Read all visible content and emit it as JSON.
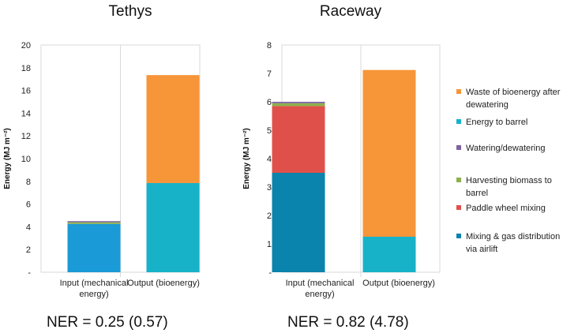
{
  "chart_data": [
    {
      "type": "bar",
      "stacked": true,
      "title": "Tethys",
      "ylabel": "Energy (MJ m⁻²)",
      "ylim": [
        0,
        20
      ],
      "yticks": [
        "-",
        "2",
        "4",
        "6",
        "8",
        "10",
        "12",
        "14",
        "16",
        "18",
        "20"
      ],
      "categories": [
        "Input (mechanical energy)",
        "Output (bioenergy)"
      ],
      "category_lines": [
        [
          "Input (mechanical",
          "energy)"
        ],
        [
          "Output (bioenergy)"
        ]
      ],
      "series": [
        {
          "name": "Mixing & gas distribution via airlift",
          "color": "#1a9ad6",
          "values": [
            4.25,
            0
          ]
        },
        {
          "name": "Paddle wheel mixing",
          "color": "#e0504a",
          "values": [
            0,
            0
          ]
        },
        {
          "name": "Harvesting biomass to barrel",
          "color": "#8db04d",
          "values": [
            0.15,
            0
          ]
        },
        {
          "name": "Watering/dewatering",
          "color": "#7f63a0",
          "values": [
            0.1,
            0
          ]
        },
        {
          "name": "Energy to barrel",
          "color": "#17b2c8",
          "values": [
            0,
            7.85
          ]
        },
        {
          "name": "Waste of bioenergy after dewatering",
          "color": "#f79539",
          "values": [
            0,
            9.5
          ]
        }
      ],
      "ner": "NER = 0.25 (0.57)"
    },
    {
      "type": "bar",
      "stacked": true,
      "title": "Raceway",
      "ylabel": "Energy (MJ m⁻²)",
      "ylim": [
        0,
        8
      ],
      "yticks": [
        "-",
        "1",
        "2",
        "3",
        "4",
        "5",
        "6",
        "7",
        "8"
      ],
      "categories": [
        "Input (mechanical energy)",
        "Output (bioenergy)"
      ],
      "category_lines": [
        [
          "Input (mechanical",
          "energy)"
        ],
        [
          "Output (bioenergy)"
        ]
      ],
      "series": [
        {
          "name": "Mixing & gas distribution via airlift",
          "color": "#0a83ad",
          "values": [
            3.5,
            0
          ]
        },
        {
          "name": "Paddle wheel mixing",
          "color": "#e0504a",
          "values": [
            2.35,
            0
          ]
        },
        {
          "name": "Harvesting biomass to barrel",
          "color": "#8db04d",
          "values": [
            0.1,
            0
          ]
        },
        {
          "name": "Watering/dewatering",
          "color": "#7f63a0",
          "values": [
            0.05,
            0
          ]
        },
        {
          "name": "Energy to barrel",
          "color": "#17b2c8",
          "values": [
            0,
            1.25
          ]
        },
        {
          "name": "Waste of bioenergy after dewatering",
          "color": "#f79539",
          "values": [
            0,
            5.87
          ]
        }
      ],
      "ner": "NER = 0.82 (4.78)"
    }
  ],
  "legend": {
    "placement": "right",
    "items": [
      {
        "lines": [
          "Waste of bioenergy after",
          "dewatering"
        ],
        "color": "#f79539"
      },
      {
        "lines": [
          "Energy to barrel"
        ],
        "color": "#17b2c8"
      },
      {
        "lines": [
          "Watering/dewatering"
        ],
        "color": "#7f63a0"
      },
      {
        "lines": [
          "Harvesting biomass to",
          "barrel"
        ],
        "color": "#8db04d"
      },
      {
        "lines": [
          "Paddle wheel mixing"
        ],
        "color": "#e0504a"
      },
      {
        "lines": [
          "Mixing & gas distribution",
          "via airlift"
        ],
        "color": "#0a83ad"
      }
    ]
  }
}
